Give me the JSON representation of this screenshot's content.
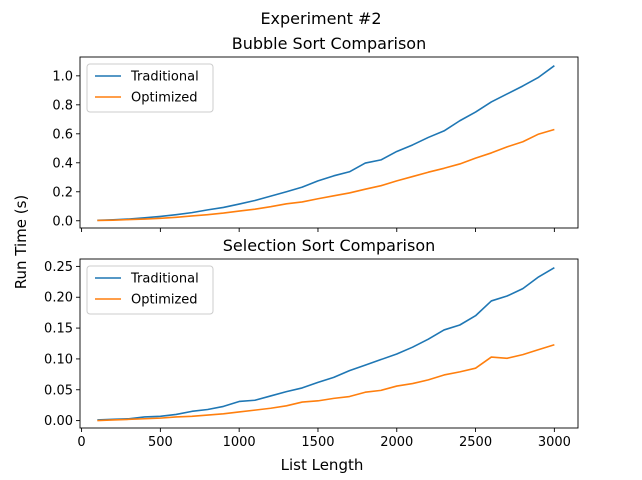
{
  "chart_data": {
    "suptitle": "Experiment #2",
    "xlabel": "List Length",
    "ylabel": "Run Time (s)",
    "xlim": [
      -10,
      3150
    ],
    "xticks": [
      0,
      500,
      1000,
      1500,
      2000,
      2500,
      3000
    ],
    "x": [
      100,
      200,
      300,
      400,
      500,
      600,
      700,
      800,
      900,
      1000,
      1100,
      1200,
      1300,
      1400,
      1500,
      1600,
      1700,
      1800,
      1900,
      2000,
      2100,
      2200,
      2300,
      2400,
      2500,
      2600,
      2700,
      2800,
      2900,
      3000
    ],
    "colors": {
      "traditional": "#1f77b4",
      "optimized": "#ff7f0e"
    },
    "charts": [
      {
        "type": "line",
        "title": "Bubble Sort Comparison",
        "ylim": [
          -0.05,
          1.13
        ],
        "yticks": [
          "0.0",
          "0.2",
          "0.4",
          "0.6",
          "0.8",
          "1.0"
        ],
        "legend": "top-left",
        "grid": false,
        "series": [
          {
            "name": "Traditional",
            "values": [
              0.003,
              0.007,
              0.012,
              0.02,
              0.03,
              0.042,
              0.056,
              0.075,
              0.092,
              0.115,
              0.14,
              0.17,
              0.2,
              0.232,
              0.275,
              0.31,
              0.338,
              0.398,
              0.42,
              0.478,
              0.523,
              0.575,
              0.62,
              0.69,
              0.75,
              0.82,
              0.875,
              0.93,
              0.99,
              1.07
            ]
          },
          {
            "name": "Optimized",
            "values": [
              0.002,
              0.004,
              0.008,
              0.012,
              0.017,
              0.024,
              0.033,
              0.042,
              0.053,
              0.067,
              0.08,
              0.097,
              0.117,
              0.13,
              0.152,
              0.172,
              0.192,
              0.218,
              0.242,
              0.275,
              0.305,
              0.335,
              0.362,
              0.392,
              0.432,
              0.468,
              0.51,
              0.545,
              0.598,
              0.63
            ]
          }
        ]
      },
      {
        "type": "line",
        "title": "Selection Sort Comparison",
        "ylim": [
          -0.012,
          0.262
        ],
        "yticks": [
          "0.00",
          "0.05",
          "0.10",
          "0.15",
          "0.20",
          "0.25"
        ],
        "legend": "top-left",
        "grid": false,
        "series": [
          {
            "name": "Traditional",
            "values": [
              0.001,
              0.002,
              0.003,
              0.006,
              0.007,
              0.01,
              0.015,
              0.018,
              0.023,
              0.031,
              0.033,
              0.04,
              0.047,
              0.053,
              0.062,
              0.07,
              0.081,
              0.09,
              0.099,
              0.108,
              0.119,
              0.132,
              0.147,
              0.155,
              0.17,
              0.194,
              0.202,
              0.214,
              0.233,
              0.248
            ]
          },
          {
            "name": "Optimized",
            "values": [
              0.0,
              0.001,
              0.002,
              0.003,
              0.004,
              0.006,
              0.007,
              0.009,
              0.011,
              0.014,
              0.017,
              0.02,
              0.024,
              0.03,
              0.032,
              0.036,
              0.039,
              0.046,
              0.049,
              0.056,
              0.06,
              0.066,
              0.074,
              0.079,
              0.085,
              0.103,
              0.101,
              0.107,
              0.115,
              0.123
            ]
          }
        ]
      }
    ]
  }
}
